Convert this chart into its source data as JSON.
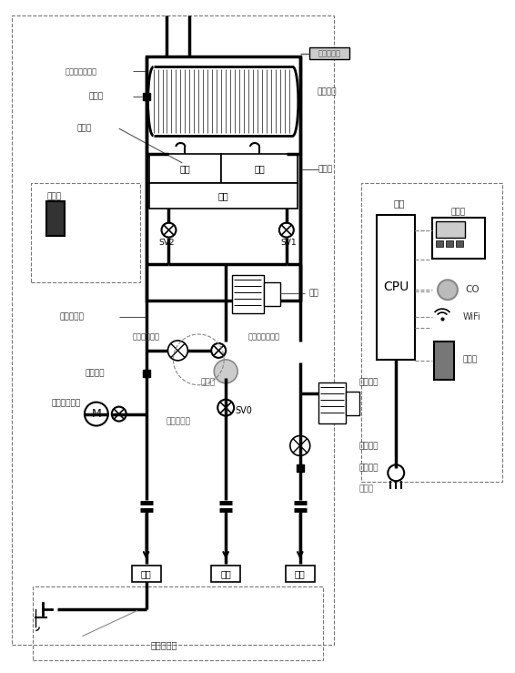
{
  "bg_color": "#ffffff",
  "labels": {
    "wen_du_xian_duan_qi": "温度熔断器",
    "re_jiao_huan_qi": "热交换器",
    "fang_gan_shao": "防干烧安全装置",
    "re_jiao_wen": "热交温",
    "dian_huo_zhen": "点火针",
    "ran_shao_qi": "燃烧器",
    "er_duan": "二段",
    "yi_duan": "一段",
    "san_duan": "三段",
    "dian_huo_qi": "点火器",
    "fen_duan_ci_guan": "分段电磁阀",
    "pu_tong_guan_shui_liu_liang": "普通管水流量",
    "pu_tong_ci_bu_jin_dian_ji": "普通磁步进电机",
    "bi_li_fa": "比例阀",
    "chu_shui_wen_du": "出水温度",
    "shui_liang_ci_fu_dian_ji": "水量伺服电机",
    "dian_ci_fa_zhu_fa": "电磁阀主阀",
    "SV0": "SV0",
    "xun_huan_shui_beng": "循环水泵",
    "jin_shui_liu_liang": "进水流量",
    "jin_shui_wen_du": "进水温度",
    "jin_shui_he": "进水阀",
    "feng_ji": "风机",
    "zhu_ban": "主板",
    "CPU": "CPU",
    "xian_shi_ban": "显示板",
    "CO": "CO",
    "wifi": "WiFi",
    "yao_kong_qi": "遥控器",
    "chu_shui": "出水",
    "jin_qi": "进气",
    "jin_shui": "进水",
    "wai_xun_huan_shui_lu": "外循环水路",
    "SV1": "SV1",
    "SV2": "SV2"
  }
}
